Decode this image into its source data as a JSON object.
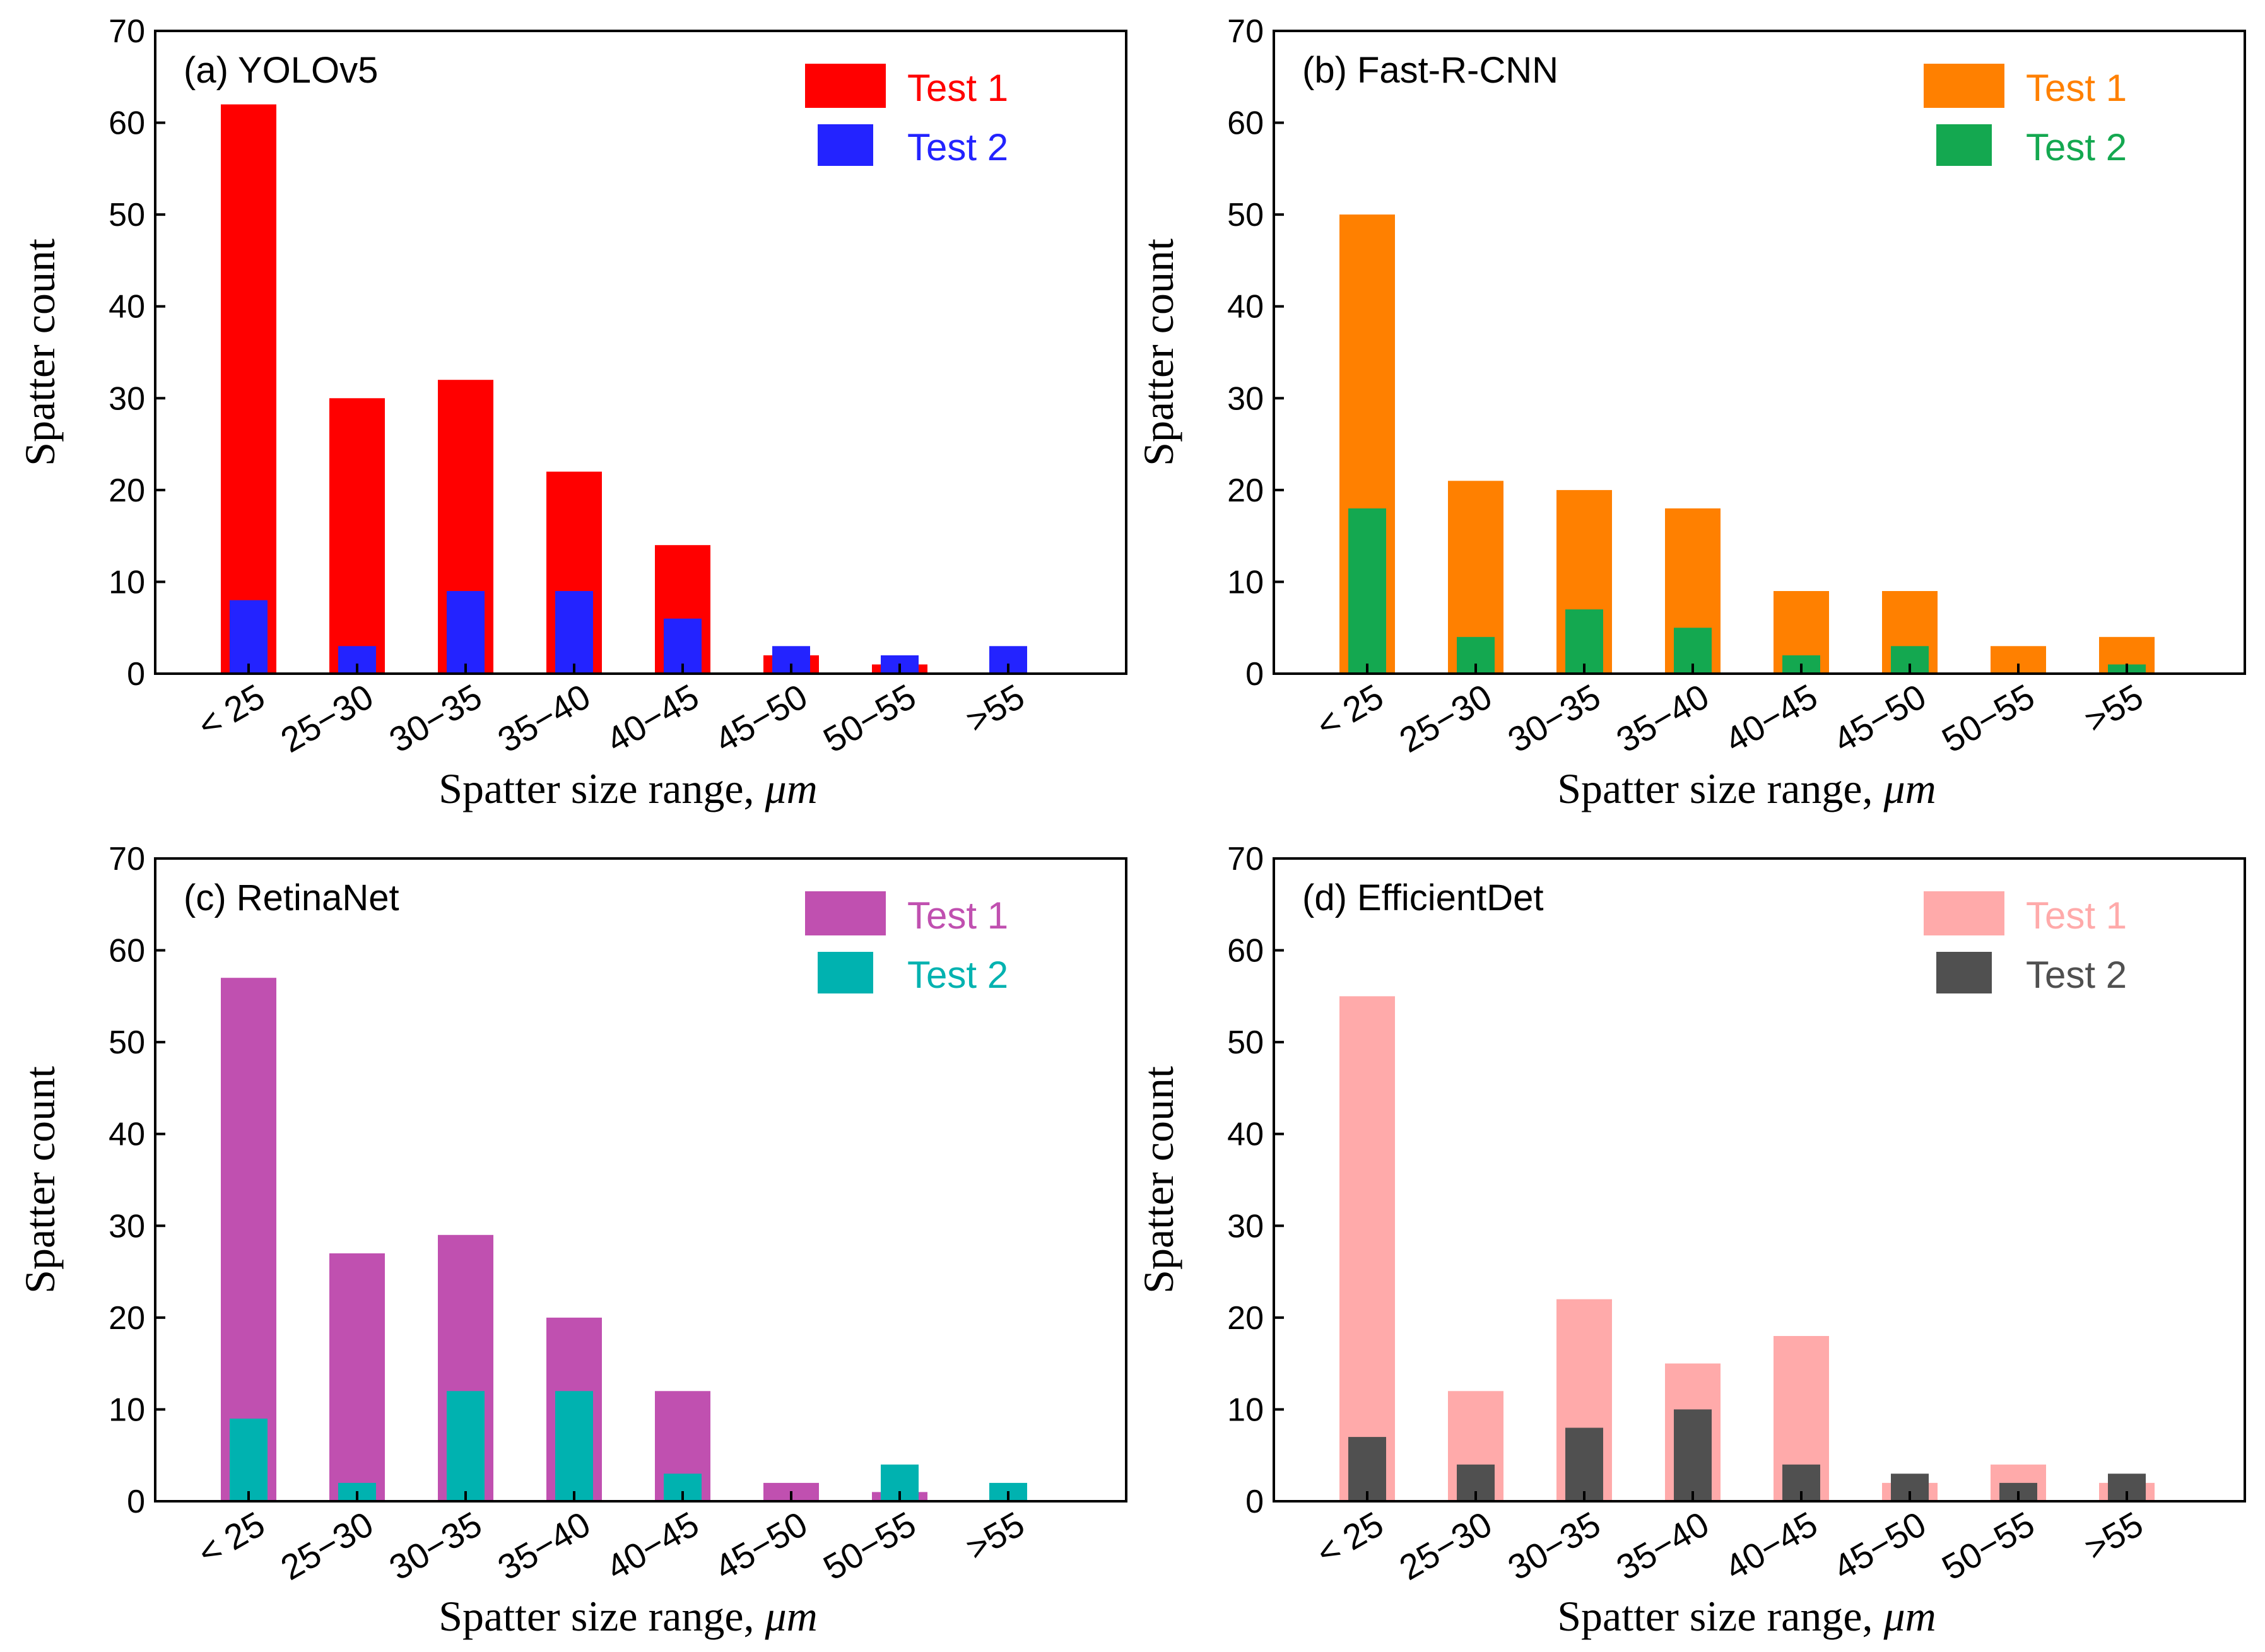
{
  "figure": {
    "panels_layout": "2x2"
  },
  "chart_data": [
    {
      "type": "bar",
      "title": "(a) YOLOv5",
      "categories": [
        "< 25",
        "25−30",
        "30−35",
        "35−40",
        "40−45",
        "45−50",
        "50−55",
        ">55"
      ],
      "series": [
        {
          "name": "Test 1",
          "color": "#ff0000",
          "values": [
            62,
            30,
            32,
            22,
            14,
            2,
            1,
            0
          ]
        },
        {
          "name": "Test 2",
          "color": "#2323ff",
          "values": [
            8,
            3,
            9,
            9,
            6,
            3,
            2,
            3
          ]
        }
      ],
      "xlabel_text": "Spatter size range, ",
      "xlabel_unit": "μm",
      "ylabel": "Spatter count",
      "ylim": [
        0,
        70
      ],
      "yticks": [
        "0",
        "10",
        "20",
        "30",
        "40",
        "50",
        "60",
        "70"
      ],
      "legend": "top-right",
      "grid": false
    },
    {
      "type": "bar",
      "title": "(b) Fast-R-CNN",
      "categories": [
        "< 25",
        "25−30",
        "30−35",
        "35−40",
        "40−45",
        "45−50",
        "50−55",
        ">55"
      ],
      "series": [
        {
          "name": "Test 1",
          "color": "#ff8000",
          "values": [
            50,
            21,
            20,
            18,
            9,
            9,
            3,
            4
          ]
        },
        {
          "name": "Test 2",
          "color": "#14a850",
          "values": [
            18,
            4,
            7,
            5,
            2,
            3,
            0,
            1
          ]
        }
      ],
      "xlabel_text": "Spatter size range, ",
      "xlabel_unit": "μm",
      "ylabel": "Spatter count",
      "ylim": [
        0,
        70
      ],
      "yticks": [
        "0",
        "10",
        "20",
        "30",
        "40",
        "50",
        "60",
        "70"
      ],
      "legend": "top-right",
      "grid": false
    },
    {
      "type": "bar",
      "title": "(c) RetinaNet",
      "categories": [
        "< 25",
        "25−30",
        "30−35",
        "35−40",
        "40−45",
        "45−50",
        "50−55",
        ">55"
      ],
      "series": [
        {
          "name": "Test 1",
          "color": "#c050b0",
          "values": [
            57,
            27,
            29,
            20,
            12,
            2,
            1,
            0
          ]
        },
        {
          "name": "Test 2",
          "color": "#00b2b0",
          "values": [
            9,
            2,
            12,
            12,
            3,
            0,
            4,
            2
          ]
        }
      ],
      "xlabel_text": "Spatter size range, ",
      "xlabel_unit": "μm",
      "ylabel": "Spatter count",
      "ylim": [
        0,
        70
      ],
      "yticks": [
        "0",
        "10",
        "20",
        "30",
        "40",
        "50",
        "60",
        "70"
      ],
      "legend": "top-right",
      "grid": false
    },
    {
      "type": "bar",
      "title": "(d) EfficientDet",
      "categories": [
        "< 25",
        "25−30",
        "30−35",
        "35−40",
        "40−45",
        "45−50",
        "50−55",
        ">55"
      ],
      "series": [
        {
          "name": "Test 1",
          "color": "#ffaaaa",
          "values": [
            55,
            12,
            22,
            15,
            18,
            2,
            4,
            2
          ]
        },
        {
          "name": "Test 2",
          "color": "#505050",
          "values": [
            7,
            4,
            8,
            10,
            4,
            3,
            2,
            3
          ]
        }
      ],
      "xlabel_text": "Spatter size range, ",
      "xlabel_unit": "μm",
      "ylabel": "Spatter count",
      "ylim": [
        0,
        70
      ],
      "yticks": [
        "0",
        "10",
        "20",
        "30",
        "40",
        "50",
        "60",
        "70"
      ],
      "legend": "top-right",
      "grid": false
    }
  ]
}
